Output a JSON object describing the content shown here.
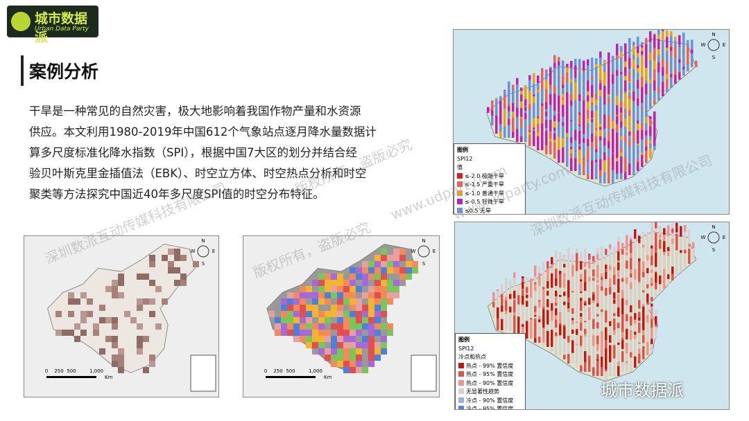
{
  "logo": {
    "name": "城市数据派",
    "subtitle": "Urban Data Party"
  },
  "heading": "案例分析",
  "paragraph": [
    "干旱是一种常见的自然灾害，极大地影响着我国作物产量和水资源",
    "供应。本文利用1980-2019年中国612个气象站点逐月降水量数据计",
    "算多尺度标准化降水指数（SPI），根据中国7大区的划分并结合经",
    "验贝叶斯克里金插值法（EBK）、时空立方体、时空热点分析和时空",
    "聚类等方法探究中国近40年多尺度SPI值的时空分布特征。"
  ],
  "compass": [
    "N",
    "E",
    "S",
    "W"
  ],
  "scale_bar": [
    "0",
    "250",
    "500",
    "1,000",
    "Km"
  ],
  "legend_spi": {
    "title": "图例",
    "subtitle": "SPI12",
    "field": "值",
    "items": [
      "≤-2.0 极端干旱",
      "≤-1.5 严重干旱",
      "≤-1.0 普通干旱",
      "≤-0.5 轻微干旱",
      "≤0.5 无旱"
    ]
  },
  "legend_hotspot": {
    "title": "图例",
    "subtitle": "SPI12",
    "field": "冷点和热点",
    "items": [
      "热点 - 99% 置信度",
      "热点 - 95% 置信度",
      "热点 - 90% 置信度",
      "无显著性趋势",
      "冷点 - 90% 置信度",
      "冷点 - 95% 置信度",
      "冷点 - 99% 置信度"
    ]
  },
  "watermarks": [
    "深圳数派互动传媒科技有限公司",
    "版权所有，盗版必究",
    "www.udparty.com"
  ],
  "badge": "城市数据派"
}
